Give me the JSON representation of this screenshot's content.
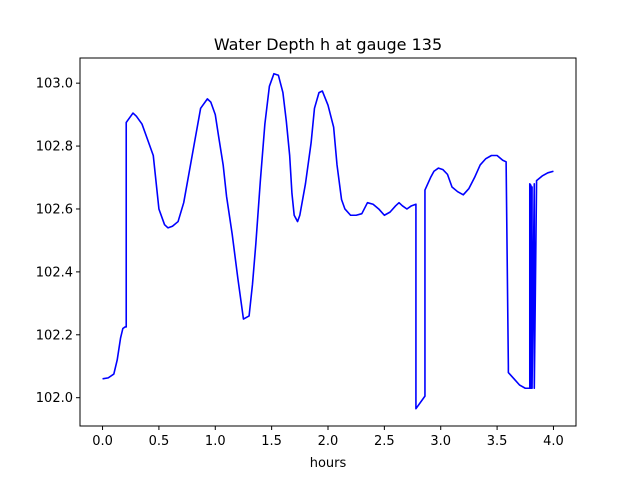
{
  "chart_data": {
    "type": "line",
    "title": "Water Depth h at gauge 135",
    "xlabel": "hours",
    "ylabel": "",
    "xlim": [
      -0.2,
      4.2
    ],
    "ylim": [
      101.91,
      103.08
    ],
    "xticks": [
      0.0,
      0.5,
      1.0,
      1.5,
      2.0,
      2.5,
      3.0,
      3.5,
      4.0
    ],
    "xtick_labels": [
      "0.0",
      "0.5",
      "1.0",
      "1.5",
      "2.0",
      "2.5",
      "3.0",
      "3.5",
      "4.0"
    ],
    "yticks": [
      102.0,
      102.2,
      102.4,
      102.6,
      102.8,
      103.0
    ],
    "ytick_labels": [
      "102.0",
      "102.2",
      "102.4",
      "102.6",
      "102.8",
      "103.0"
    ],
    "grid": false,
    "colors": {
      "line": "#0000ff"
    },
    "series": [
      {
        "x": [
          0.0,
          0.05,
          0.1,
          0.13,
          0.16,
          0.18,
          0.2,
          0.21,
          0.21,
          0.25,
          0.27,
          0.3,
          0.35,
          0.4,
          0.45,
          0.5,
          0.55,
          0.58,
          0.62,
          0.67,
          0.72,
          0.77,
          0.82,
          0.87,
          0.93,
          0.96,
          1.0,
          1.03,
          1.07,
          1.1,
          1.15,
          1.2,
          1.25,
          1.3,
          1.33,
          1.36,
          1.4,
          1.44,
          1.48,
          1.52,
          1.56,
          1.6,
          1.63,
          1.66,
          1.68,
          1.7,
          1.73,
          1.75,
          1.8,
          1.85,
          1.88,
          1.92,
          1.95,
          2.0,
          2.05,
          2.08,
          2.12,
          2.15,
          2.2,
          2.25,
          2.3,
          2.35,
          2.4,
          2.45,
          2.5,
          2.55,
          2.6,
          2.63,
          2.66,
          2.7,
          2.74,
          2.78,
          2.78,
          2.86,
          2.86,
          2.91,
          2.94,
          2.98,
          3.02,
          3.06,
          3.1,
          3.15,
          3.2,
          3.25,
          3.3,
          3.35,
          3.4,
          3.45,
          3.5,
          3.55,
          3.58,
          3.6,
          3.6,
          3.65,
          3.7,
          3.75,
          3.78,
          3.79,
          3.79,
          3.8,
          3.8,
          3.81,
          3.81,
          3.83,
          3.83,
          3.85,
          3.85,
          3.9,
          3.95,
          4.0
        ],
        "y": [
          102.06,
          102.063,
          102.075,
          102.12,
          102.19,
          102.22,
          102.225,
          102.225,
          102.875,
          102.895,
          102.905,
          102.895,
          102.87,
          102.82,
          102.77,
          102.6,
          102.55,
          102.54,
          102.545,
          102.56,
          102.62,
          102.72,
          102.82,
          102.92,
          102.95,
          102.94,
          102.9,
          102.83,
          102.74,
          102.64,
          102.52,
          102.38,
          102.25,
          102.26,
          102.36,
          102.49,
          102.69,
          102.87,
          102.99,
          103.03,
          103.025,
          102.97,
          102.88,
          102.77,
          102.65,
          102.58,
          102.56,
          102.58,
          102.68,
          102.81,
          102.92,
          102.97,
          102.975,
          102.93,
          102.86,
          102.74,
          102.63,
          102.6,
          102.58,
          102.58,
          102.585,
          102.62,
          102.615,
          102.6,
          102.58,
          102.59,
          102.61,
          102.62,
          102.61,
          102.6,
          102.61,
          102.615,
          101.965,
          102.005,
          102.66,
          102.7,
          102.72,
          102.73,
          102.725,
          102.71,
          102.67,
          102.655,
          102.645,
          102.665,
          102.7,
          102.74,
          102.76,
          102.77,
          102.77,
          102.755,
          102.75,
          102.1,
          102.08,
          102.06,
          102.04,
          102.03,
          102.03,
          102.03,
          102.68,
          102.675,
          102.03,
          102.67,
          102.03,
          102.68,
          102.03,
          102.68,
          102.69,
          102.705,
          102.715,
          102.72
        ]
      }
    ]
  }
}
